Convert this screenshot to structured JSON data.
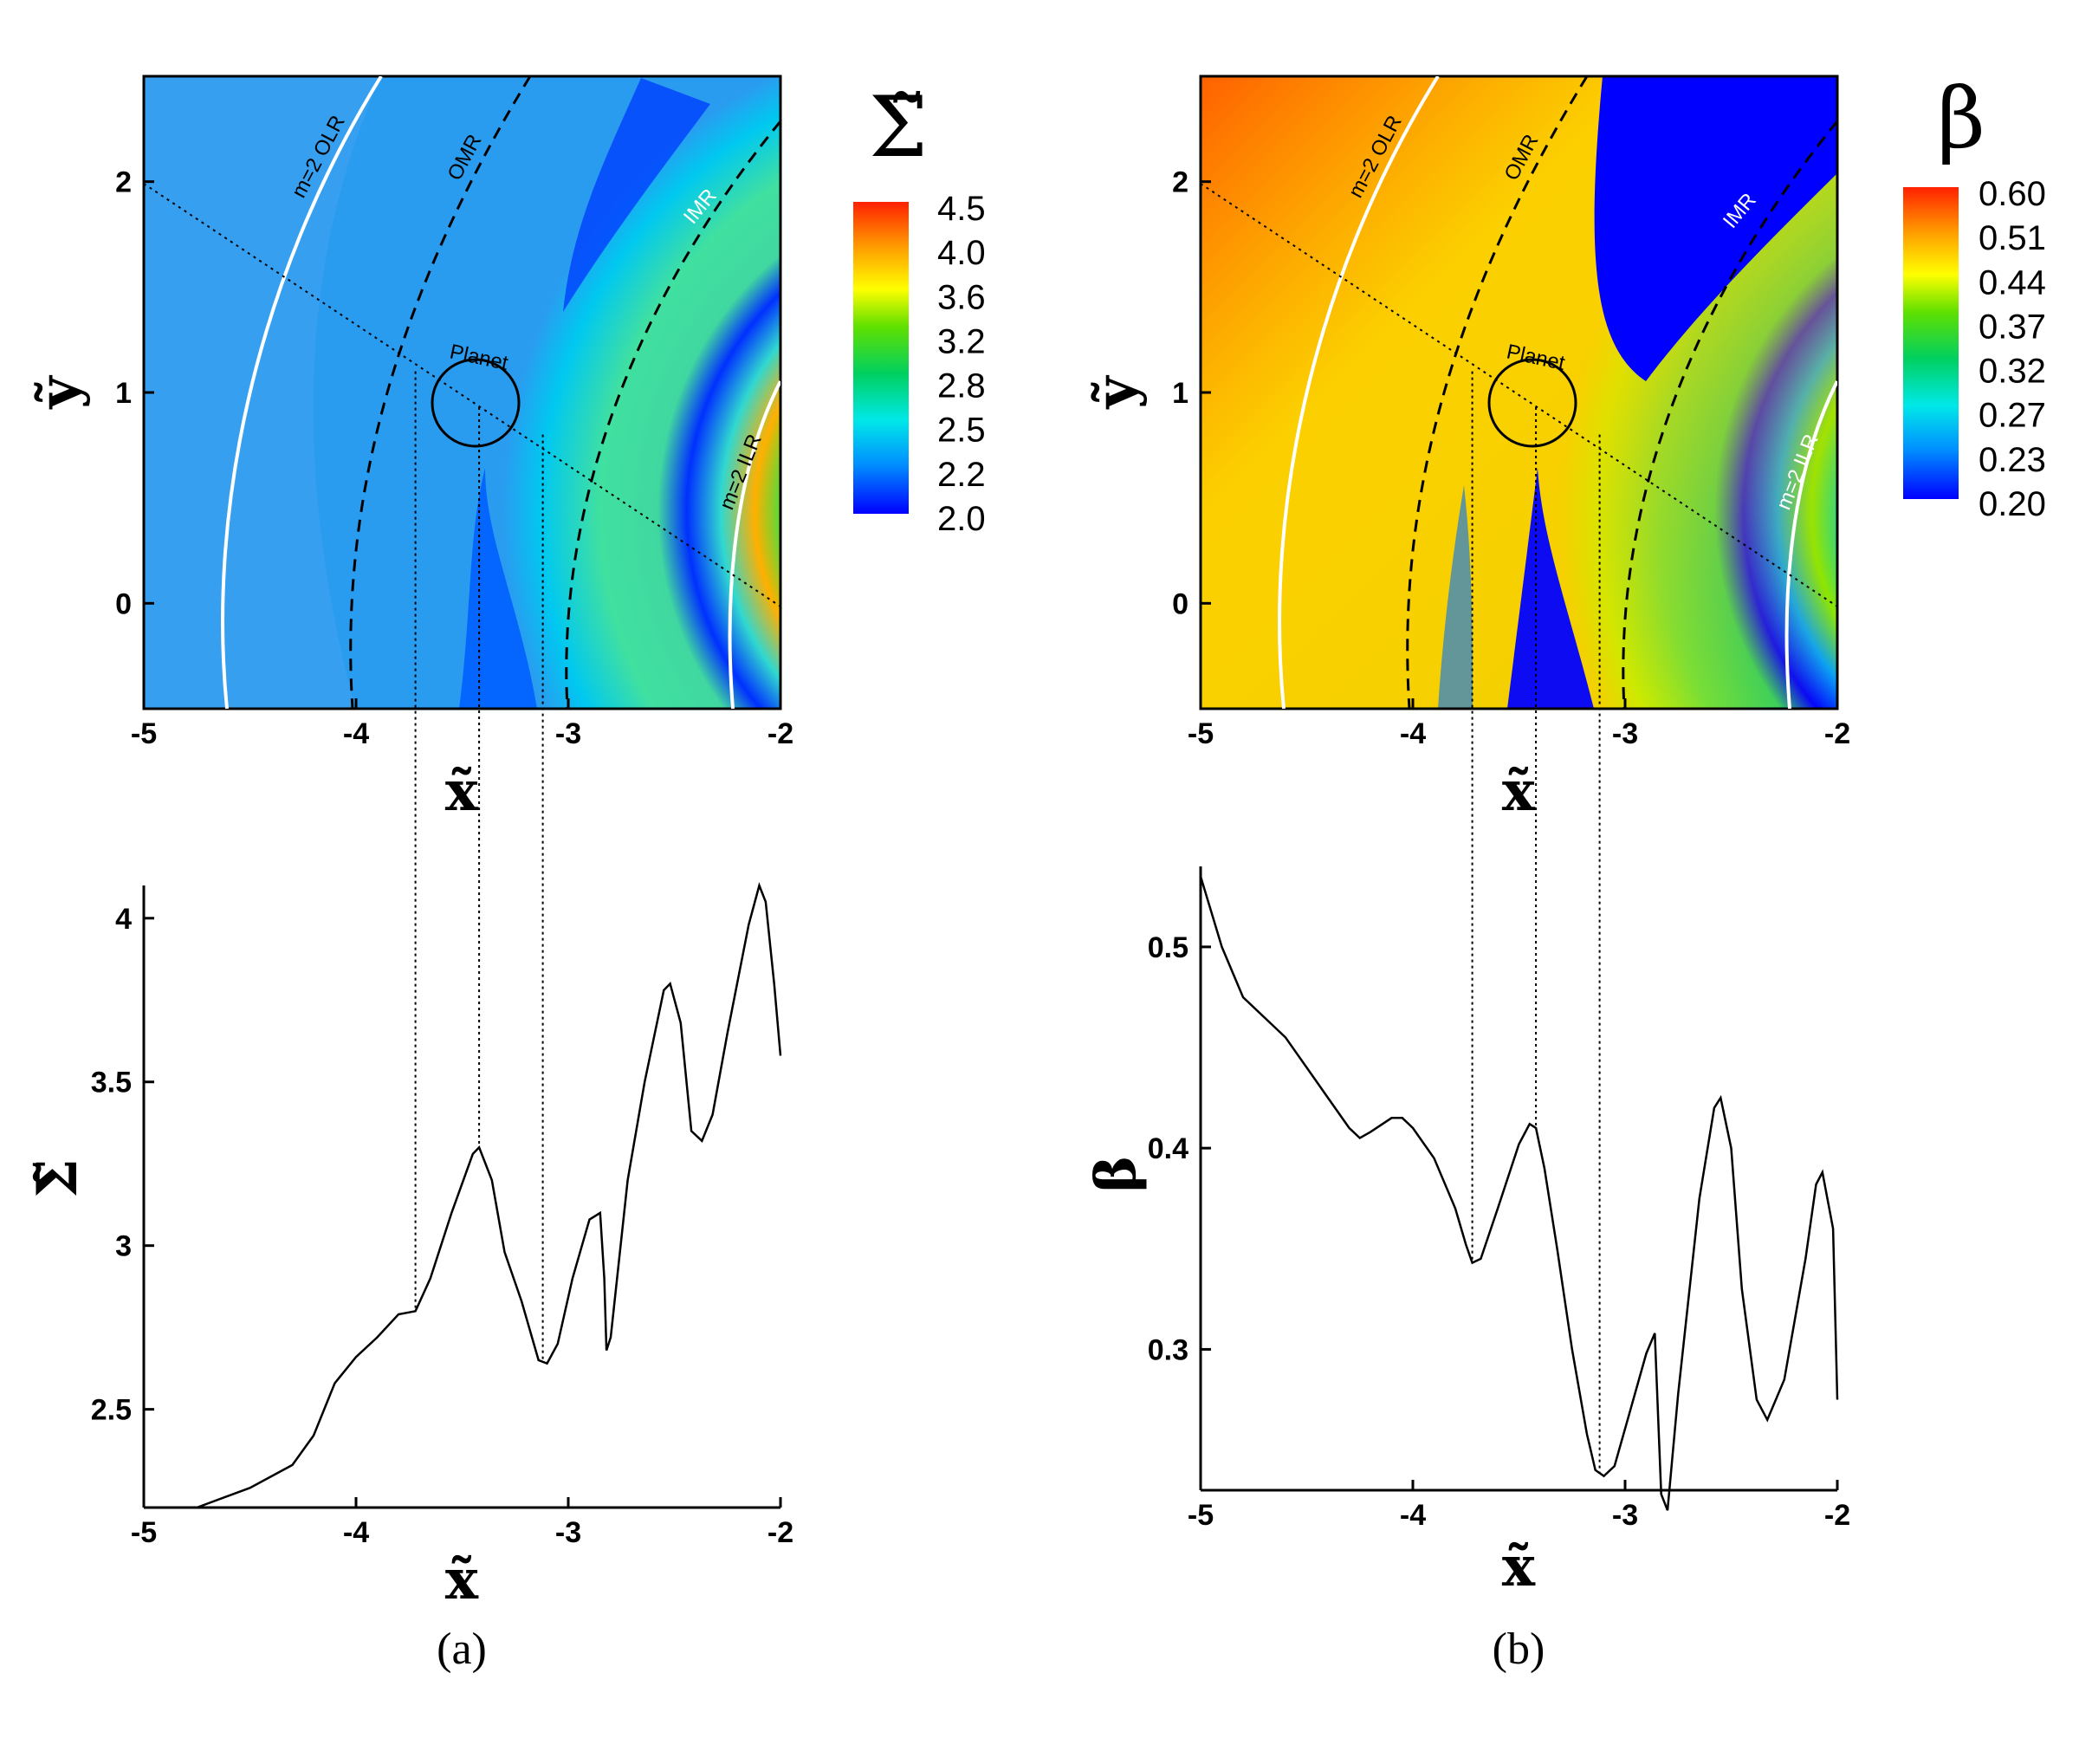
{
  "chart_data": [
    {
      "type": "heatmap",
      "panel": "a-top",
      "xlabel": "x̃",
      "ylabel": "ỹ",
      "xlim": [
        -5,
        -2
      ],
      "ylim": [
        -0.5,
        2.5
      ],
      "xticks": [
        "-5",
        "-4",
        "-3",
        "-2"
      ],
      "yticks": [
        "0",
        "1",
        "2"
      ],
      "colorbar": {
        "title": "Σ̃",
        "ticks": [
          "4.5",
          "4.0",
          "3.6",
          "3.2",
          "2.8",
          "2.5",
          "2.2",
          "2.0"
        ]
      },
      "annotations": [
        "m=2 OLR",
        "OMR",
        "IMR",
        "m=2 ILR",
        "Planet"
      ],
      "planet": {
        "x": -3.42,
        "y": 0.93,
        "r": 0.2
      },
      "guide_x": [
        -3.72,
        -3.42,
        -3.12
      ]
    },
    {
      "type": "line",
      "panel": "a-bottom",
      "xlabel": "x̃",
      "ylabel": "Σ̃",
      "xlim": [
        -5,
        -2
      ],
      "ylim": [
        2.2,
        4.1
      ],
      "xticks": [
        "-5",
        "-4",
        "-3",
        "-2"
      ],
      "yticks": [
        "2.5",
        "3",
        "3.5",
        "4"
      ],
      "x": [
        -4.75,
        -4.5,
        -4.3,
        -4.2,
        -4.1,
        -4.0,
        -3.9,
        -3.8,
        -3.72,
        -3.65,
        -3.55,
        -3.45,
        -3.42,
        -3.36,
        -3.3,
        -3.22,
        -3.14,
        -3.1,
        -3.05,
        -2.98,
        -2.9,
        -2.85,
        -2.83,
        -2.82,
        -2.8,
        -2.72,
        -2.64,
        -2.55,
        -2.52,
        -2.47,
        -2.42,
        -2.37,
        -2.32,
        -2.25,
        -2.15,
        -2.1,
        -2.07,
        -2.03,
        -2.0
      ],
      "y": [
        2.2,
        2.26,
        2.33,
        2.42,
        2.58,
        2.66,
        2.72,
        2.79,
        2.8,
        2.9,
        3.1,
        3.28,
        3.3,
        3.2,
        2.98,
        2.83,
        2.65,
        2.64,
        2.7,
        2.9,
        3.08,
        3.1,
        2.9,
        2.68,
        2.72,
        3.2,
        3.5,
        3.78,
        3.8,
        3.68,
        3.35,
        3.32,
        3.4,
        3.65,
        3.98,
        4.1,
        4.05,
        3.8,
        3.58
      ]
    },
    {
      "type": "heatmap",
      "panel": "b-top",
      "xlabel": "x̃",
      "ylabel": "ỹ",
      "xlim": [
        -5,
        -2
      ],
      "ylim": [
        -0.5,
        2.5
      ],
      "xticks": [
        "-5",
        "-4",
        "-3",
        "-2"
      ],
      "yticks": [
        "0",
        "1",
        "2"
      ],
      "colorbar": {
        "title": "β",
        "ticks": [
          "0.60",
          "0.51",
          "0.44",
          "0.37",
          "0.32",
          "0.27",
          "0.23",
          "0.20"
        ]
      },
      "annotations": [
        "m=2 OLR",
        "OMR",
        "IMR",
        "m=2 ILR",
        "Planet"
      ],
      "planet": {
        "x": -3.42,
        "y": 0.93,
        "r": 0.2
      },
      "guide_x": [
        -3.72,
        -3.42,
        -3.12
      ]
    },
    {
      "type": "line",
      "panel": "b-bottom",
      "xlabel": "x̃",
      "ylabel": "β",
      "xlim": [
        -5,
        -2
      ],
      "ylim": [
        0.23,
        0.54
      ],
      "xticks": [
        "-5",
        "-4",
        "-3",
        "-2"
      ],
      "yticks": [
        "0.3",
        "0.4",
        "0.5"
      ],
      "x": [
        -5.0,
        -4.9,
        -4.8,
        -4.6,
        -4.4,
        -4.3,
        -4.25,
        -4.2,
        -4.1,
        -4.05,
        -4.0,
        -3.9,
        -3.8,
        -3.75,
        -3.72,
        -3.68,
        -3.6,
        -3.5,
        -3.45,
        -3.42,
        -3.38,
        -3.32,
        -3.25,
        -3.18,
        -3.14,
        -3.1,
        -3.05,
        -2.98,
        -2.9,
        -2.86,
        -2.83,
        -2.8,
        -2.75,
        -2.65,
        -2.58,
        -2.55,
        -2.5,
        -2.45,
        -2.38,
        -2.33,
        -2.25,
        -2.15,
        -2.1,
        -2.07,
        -2.02,
        -2.0
      ],
      "y": [
        0.535,
        0.5,
        0.475,
        0.455,
        0.425,
        0.41,
        0.405,
        0.408,
        0.415,
        0.415,
        0.41,
        0.395,
        0.37,
        0.352,
        0.343,
        0.345,
        0.37,
        0.402,
        0.412,
        0.41,
        0.39,
        0.35,
        0.3,
        0.258,
        0.24,
        0.237,
        0.242,
        0.268,
        0.298,
        0.308,
        0.228,
        0.22,
        0.278,
        0.375,
        0.42,
        0.425,
        0.4,
        0.33,
        0.275,
        0.265,
        0.285,
        0.345,
        0.382,
        0.388,
        0.36,
        0.275
      ]
    }
  ],
  "captions": [
    "(a)",
    "(b)"
  ]
}
